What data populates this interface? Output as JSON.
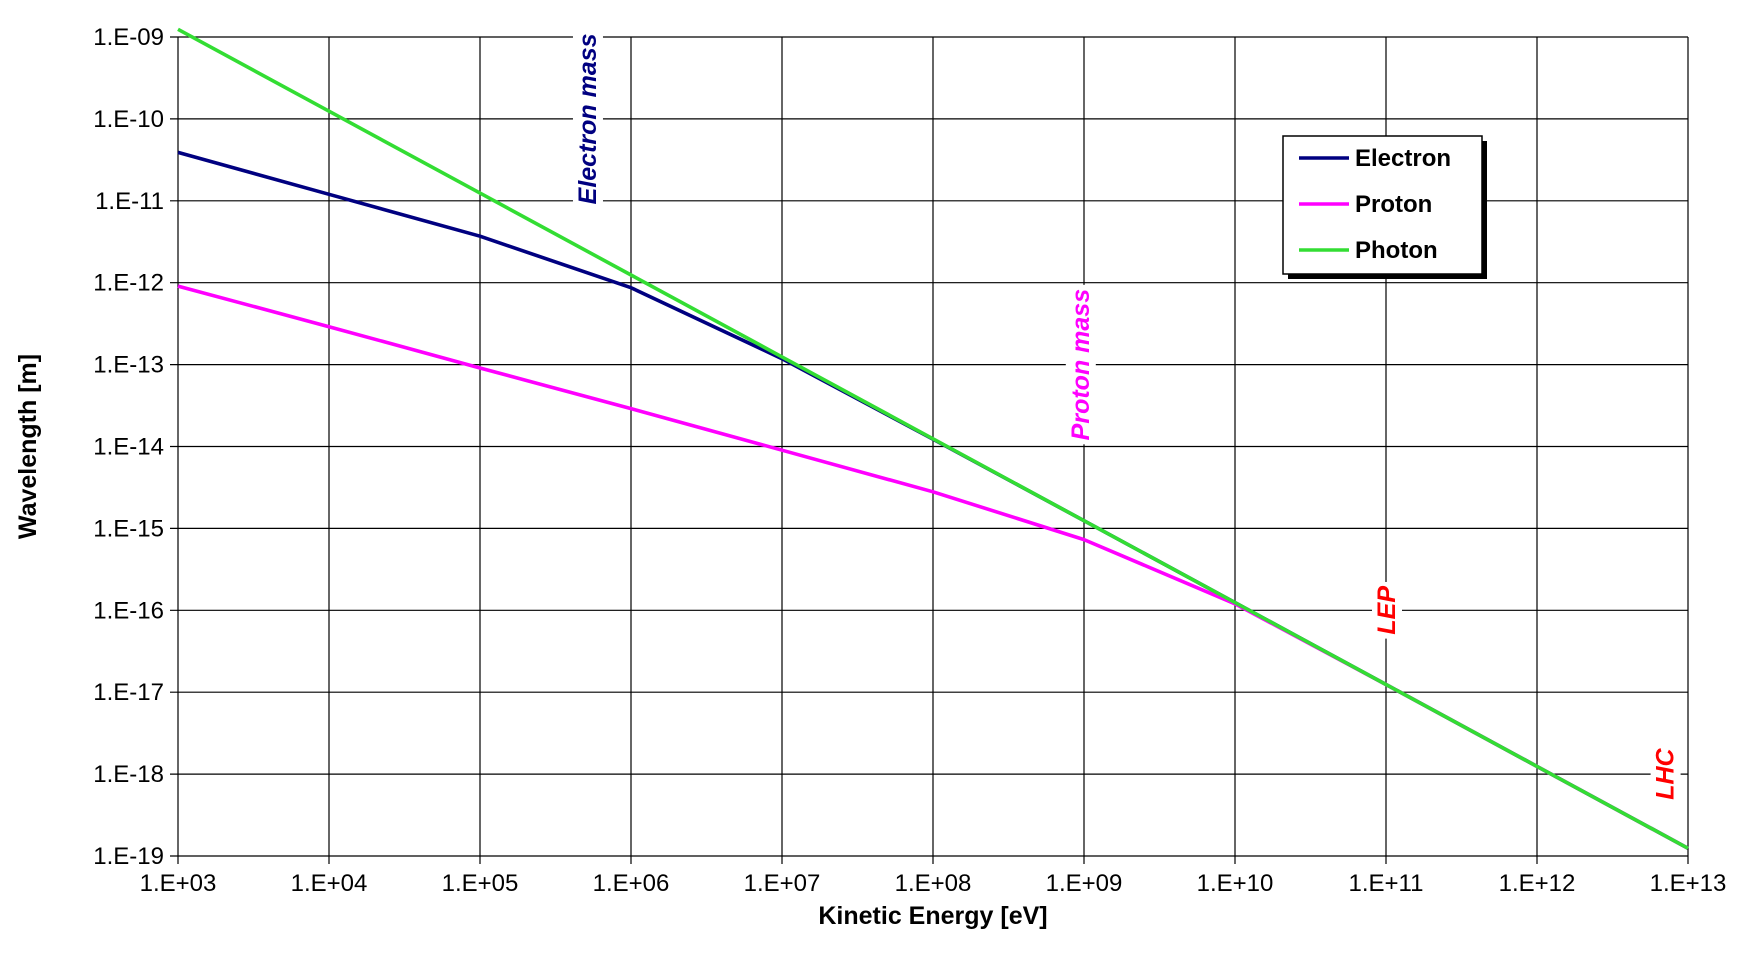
{
  "chart_data": {
    "type": "line",
    "xlabel": "Kinetic Energy [eV]",
    "ylabel": "Wavelength [m]",
    "x_scale": "log",
    "y_scale": "log",
    "xlim": [
      1000.0,
      10000000000000.0
    ],
    "ylim": [
      1e-19,
      1e-09
    ],
    "grid": true,
    "legend_position": "top-right",
    "x_ticks": [
      "1.E+03",
      "1.E+04",
      "1.E+05",
      "1.E+06",
      "1.E+07",
      "1.E+08",
      "1.E+09",
      "1.E+10",
      "1.E+11",
      "1.E+12",
      "1.E+13"
    ],
    "y_ticks": [
      "1.E-09",
      "1.E-10",
      "1.E-11",
      "1.E-12",
      "1.E-13",
      "1.E-14",
      "1.E-15",
      "1.E-16",
      "1.E-17",
      "1.E-18",
      "1.E-19"
    ],
    "series": [
      {
        "name": "Electron",
        "color": "#000080",
        "x": [
          1000.0,
          10000.0,
          100000.0,
          1000000.0,
          10000000.0,
          100000000.0,
          1000000000.0,
          10000000000.0,
          100000000000.0,
          1000000000000.0,
          10000000000000.0
        ],
        "y": [
          3.9e-11,
          1.2e-11,
          3.7e-12,
          8.7e-13,
          1.18e-13,
          1.23e-14,
          1.24e-15,
          1.24e-16,
          1.24e-17,
          1.24e-18,
          1.24e-19
        ]
      },
      {
        "name": "Proton",
        "color": "#ff00ff",
        "x": [
          1000.0,
          10000.0,
          100000.0,
          1000000.0,
          10000000.0,
          100000000.0,
          1000000000.0,
          10000000000.0,
          100000000000.0,
          1000000000000.0,
          10000000000000.0
        ],
        "y": [
          9.1e-13,
          2.9e-13,
          9.1e-14,
          2.9e-14,
          9e-15,
          2.8e-15,
          7.3e-16,
          1.2e-16,
          1.24e-17,
          1.24e-18,
          1.24e-19
        ]
      },
      {
        "name": "Photon",
        "color": "#33dd33",
        "x": [
          1000.0,
          10000.0,
          100000.0,
          1000000.0,
          10000000.0,
          100000000.0,
          1000000000.0,
          10000000000.0,
          100000000000.0,
          1000000000000.0,
          10000000000000.0
        ],
        "y": [
          1.24e-09,
          1.24e-10,
          1.24e-11,
          1.24e-12,
          1.24e-13,
          1.24e-14,
          1.24e-15,
          1.24e-16,
          1.24e-17,
          1.24e-18,
          1.24e-19
        ]
      }
    ],
    "annotations": [
      {
        "text": "Electron mass",
        "x": 511000.0,
        "y": 1e-10,
        "color": "#000080"
      },
      {
        "text": "Proton mass",
        "x": 938000000.0,
        "y": 1e-13,
        "color": "#ff00ff"
      },
      {
        "text": "LEP",
        "x": 100000000000.0,
        "y": 1e-16,
        "color": "#ff0000"
      },
      {
        "text": "LHC",
        "x": 7000000000000.0,
        "y": 1e-18,
        "color": "#ff0000"
      }
    ]
  }
}
